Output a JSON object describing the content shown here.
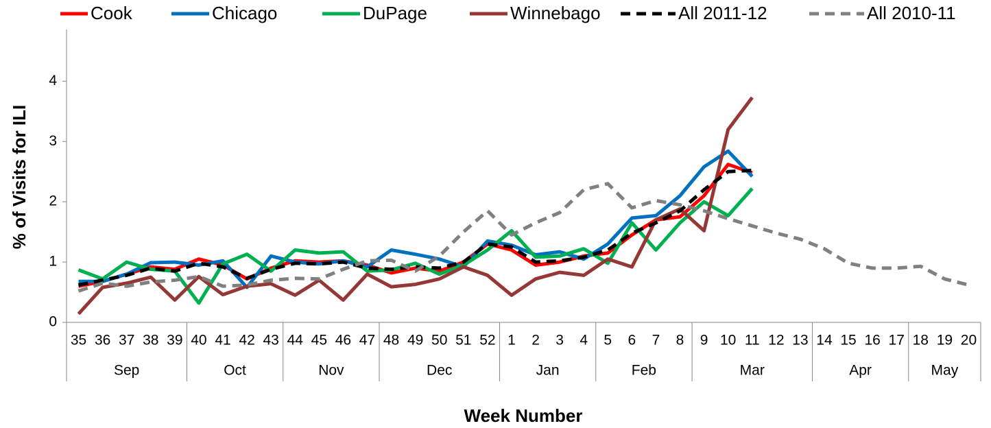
{
  "chart_data": {
    "type": "line",
    "x_label": "Week Number",
    "y_label": "% of Visits for ILI",
    "categories": [
      "35",
      "36",
      "37",
      "38",
      "39",
      "40",
      "41",
      "42",
      "43",
      "44",
      "45",
      "46",
      "47",
      "48",
      "49",
      "50",
      "51",
      "52",
      "1",
      "2",
      "3",
      "4",
      "5",
      "6",
      "7",
      "8",
      "9",
      "10",
      "11",
      "12",
      "13",
      "14",
      "15",
      "16",
      "17",
      "18",
      "19",
      "20"
    ],
    "month_groups": [
      {
        "label": "Sep",
        "span": 5
      },
      {
        "label": "Oct",
        "span": 4
      },
      {
        "label": "Nov",
        "span": 4
      },
      {
        "label": "Dec",
        "span": 5
      },
      {
        "label": "Jan",
        "span": 4
      },
      {
        "label": "Feb",
        "span": 4
      },
      {
        "label": "Mar",
        "span": 5
      },
      {
        "label": "Apr",
        "span": 4
      },
      {
        "label": "May",
        "span": 3
      }
    ],
    "ylim": [
      0,
      4.8
    ],
    "yticks": [
      0,
      1,
      2,
      3,
      4
    ],
    "legend": "top",
    "series": [
      {
        "name": "Cook",
        "color": "#ff0000",
        "dash": false,
        "values": [
          0.6,
          0.68,
          0.8,
          0.92,
          0.88,
          1.05,
          0.95,
          0.72,
          0.9,
          1.02,
          1.0,
          1.02,
          0.95,
          0.82,
          0.9,
          0.85,
          1.0,
          1.3,
          1.2,
          0.95,
          1.0,
          1.1,
          1.15,
          1.45,
          1.7,
          1.75,
          2.1,
          2.62,
          2.48,
          null,
          null,
          null,
          null,
          null,
          null,
          null,
          null,
          null
        ]
      },
      {
        "name": "Chicago",
        "color": "#0070c0",
        "dash": false,
        "values": [
          0.68,
          0.68,
          0.8,
          0.99,
          1.0,
          0.95,
          1.02,
          0.58,
          1.1,
          1.0,
          0.97,
          1.02,
          0.92,
          1.2,
          1.13,
          1.05,
          0.92,
          1.35,
          1.28,
          1.12,
          1.17,
          1.05,
          1.3,
          1.73,
          1.77,
          2.1,
          2.58,
          2.84,
          2.42,
          null,
          null,
          null,
          null,
          null,
          null,
          null,
          null,
          null
        ]
      },
      {
        "name": "DuPage",
        "color": "#00b050",
        "dash": false,
        "values": [
          0.87,
          0.72,
          1.0,
          0.88,
          0.85,
          0.32,
          0.97,
          1.13,
          0.85,
          1.2,
          1.15,
          1.17,
          0.85,
          0.87,
          0.98,
          0.8,
          0.95,
          1.2,
          1.52,
          1.08,
          1.1,
          1.22,
          0.98,
          1.65,
          1.2,
          1.65,
          2.0,
          1.77,
          2.22,
          null,
          null,
          null,
          null,
          null,
          null,
          null,
          null,
          null
        ]
      },
      {
        "name": "Winnebago",
        "color": "#953735",
        "dash": false,
        "values": [
          0.14,
          0.58,
          0.65,
          0.75,
          0.37,
          0.76,
          0.46,
          0.6,
          0.64,
          0.45,
          0.7,
          0.37,
          0.8,
          0.59,
          0.63,
          0.72,
          0.92,
          0.78,
          0.45,
          0.72,
          0.83,
          0.78,
          1.05,
          0.92,
          1.7,
          1.88,
          1.52,
          3.2,
          3.73,
          null,
          null,
          null,
          null,
          null,
          null,
          null,
          null,
          null
        ]
      },
      {
        "name": "All 2011-12",
        "color": "#000000",
        "dash": true,
        "values": [
          0.62,
          0.7,
          0.78,
          0.9,
          0.85,
          0.98,
          0.92,
          0.73,
          0.88,
          0.98,
          0.97,
          1.0,
          0.9,
          0.88,
          0.92,
          0.9,
          1.0,
          1.3,
          1.25,
          1.0,
          1.02,
          1.08,
          1.2,
          1.48,
          1.65,
          1.85,
          2.2,
          2.5,
          2.52,
          null,
          null,
          null,
          null,
          null,
          null,
          null,
          null,
          null
        ]
      },
      {
        "name": "All 2010-11",
        "color": "#808080",
        "dash": true,
        "values": [
          0.52,
          0.65,
          0.6,
          0.67,
          0.7,
          0.76,
          0.6,
          0.62,
          0.7,
          0.73,
          0.72,
          0.88,
          1.02,
          1.03,
          0.85,
          1.1,
          1.5,
          1.85,
          1.45,
          1.65,
          1.82,
          2.2,
          2.3,
          1.9,
          2.02,
          1.95,
          1.85,
          1.72,
          1.6,
          1.48,
          1.38,
          1.22,
          0.98,
          0.9,
          0.9,
          0.93,
          0.72,
          0.62
        ]
      }
    ]
  }
}
